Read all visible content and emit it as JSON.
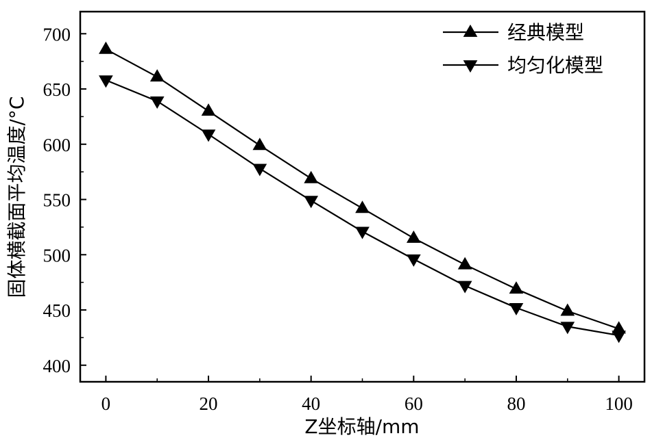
{
  "chart_data": {
    "type": "line",
    "xlabel": "Z坐标轴/mm",
    "ylabel": "固体横截面平均温度/°C",
    "xlim": [
      -5,
      105
    ],
    "ylim": [
      385,
      720
    ],
    "xticks": [
      0,
      20,
      40,
      60,
      80,
      100
    ],
    "yticks": [
      400,
      450,
      500,
      550,
      600,
      650,
      700
    ],
    "x": [
      0,
      10,
      20,
      30,
      40,
      50,
      60,
      70,
      80,
      90,
      100
    ],
    "series": [
      {
        "name": "经典模型",
        "marker": "triangle-up",
        "values": [
          686,
          661,
          630,
          599,
          569,
          542,
          515,
          491,
          469,
          449,
          433
        ]
      },
      {
        "name": "均匀化模型",
        "marker": "triangle-down",
        "values": [
          658,
          639,
          609,
          578,
          549,
          521,
          496,
          472,
          452,
          435,
          427
        ]
      }
    ],
    "legend_position": "top-right",
    "grid": false,
    "colors": {
      "line": "#000000",
      "marker": "#000000"
    }
  }
}
